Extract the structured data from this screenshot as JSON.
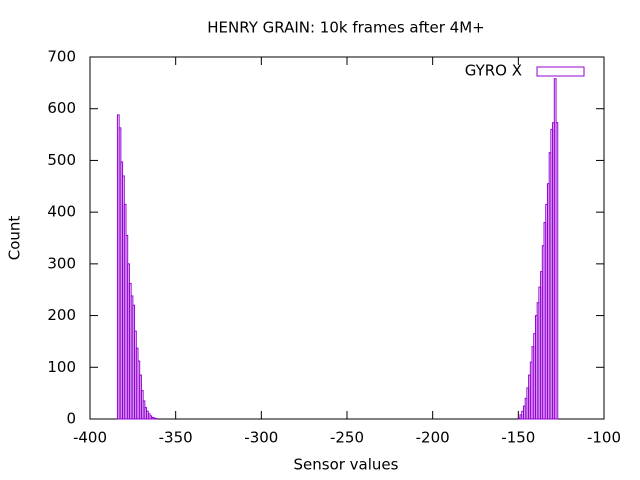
{
  "chart_data": {
    "type": "histogram",
    "title": "HENRY GRAIN: 10k frames after 4M+",
    "xlabel": "Sensor values",
    "ylabel": "Count",
    "series": [
      {
        "name": "GYRO X",
        "color": "#9400d3",
        "bins": [
          -384,
          -383,
          -382,
          -381,
          -380,
          -379,
          -378,
          -377,
          -376,
          -375,
          -374,
          -373,
          -372,
          -371,
          -370,
          -369,
          -368,
          -367,
          -366,
          -365,
          -364,
          -363,
          -362,
          -361,
          -360,
          -359,
          -358,
          -357,
          -356,
          -355,
          -354,
          -353,
          -352,
          -351,
          -350,
          -349,
          -348,
          -347,
          -346,
          -345,
          -344,
          -343,
          -342,
          -341,
          -340,
          -339,
          -338,
          -337,
          -336,
          -335,
          -334,
          -333,
          -332,
          -331,
          -330,
          -329,
          -328,
          -327,
          -326,
          -325,
          -324,
          -323,
          -322,
          -321,
          -320,
          -319,
          -318,
          -317,
          -316,
          -315,
          -314,
          -313,
          -312,
          -311,
          -310,
          -309,
          -308,
          -307,
          -306,
          -305,
          -304,
          -303,
          -302,
          -301,
          -300,
          -299,
          -298,
          -297,
          -296,
          -295,
          -294,
          -293,
          -292,
          -291,
          -290,
          -289,
          -288,
          -287,
          -286,
          -285,
          -284,
          -283,
          -282,
          -281,
          -280,
          -279,
          -278,
          -277,
          -276,
          -275,
          -274,
          -273,
          -272,
          -271,
          -270,
          -269,
          -268,
          -267,
          -266,
          -265,
          -264,
          -263,
          -262,
          -261,
          -260,
          -259,
          -258,
          -257,
          -256,
          -255,
          -254,
          -253,
          -252,
          -251,
          -250,
          -249,
          -248,
          -247,
          -246,
          -245,
          -244,
          -243,
          -242,
          -241,
          -240,
          -239,
          -238,
          -237,
          -236,
          -235,
          -234,
          -233,
          -232,
          -231,
          -230,
          -229,
          -228,
          -227,
          -226,
          -225,
          -224,
          -223,
          -222,
          -221,
          -220,
          -219,
          -218,
          -217,
          -216,
          -215,
          -214,
          -213,
          -212,
          -211,
          -210,
          -209,
          -208,
          -207,
          -206,
          -205,
          -204,
          -203,
          -202,
          -201,
          -200,
          -199,
          -198,
          -197,
          -196,
          -195,
          -194,
          -193,
          -192,
          -191,
          -190,
          -189,
          -188,
          -187,
          -186,
          -185,
          -184,
          -183,
          -182,
          -181,
          -180,
          -179,
          -178,
          -177,
          -176,
          -175,
          -174,
          -173,
          -172,
          -171,
          -170,
          -169,
          -168,
          -167,
          -166,
          -165,
          -164,
          -163,
          -162,
          -161,
          -160,
          -159,
          -158,
          -157,
          -156,
          -155,
          -154,
          -153,
          -152,
          -151,
          -150,
          -149,
          -148,
          -147,
          -146,
          -145,
          -144,
          -143,
          -142,
          -141,
          -140,
          -139,
          -138,
          -137,
          -136,
          -135,
          -134,
          -133,
          -132,
          -131,
          -130,
          -129,
          -128,
          -127
        ],
        "values": [
          588,
          563,
          497,
          470,
          415,
          355,
          300,
          262,
          238,
          220,
          170,
          137,
          112,
          85,
          55,
          35,
          22,
          15,
          10,
          6,
          3,
          2,
          1,
          0,
          0,
          0,
          0,
          0,
          0,
          0,
          0,
          0,
          0,
          0,
          0,
          0,
          0,
          0,
          0,
          0,
          0,
          0,
          0,
          0,
          0,
          0,
          0,
          0,
          0,
          0,
          0,
          0,
          0,
          0,
          0,
          0,
          0,
          0,
          0,
          0,
          0,
          0,
          0,
          0,
          0,
          0,
          0,
          0,
          0,
          0,
          0,
          0,
          0,
          0,
          0,
          0,
          0,
          0,
          0,
          0,
          0,
          0,
          0,
          0,
          0,
          0,
          0,
          0,
          0,
          0,
          0,
          0,
          0,
          0,
          0,
          0,
          0,
          0,
          0,
          0,
          0,
          0,
          0,
          0,
          0,
          0,
          0,
          0,
          0,
          0,
          0,
          0,
          0,
          0,
          0,
          0,
          0,
          0,
          0,
          0,
          0,
          0,
          0,
          0,
          0,
          0,
          0,
          0,
          0,
          0,
          0,
          0,
          0,
          0,
          0,
          0,
          0,
          0,
          0,
          0,
          0,
          0,
          0,
          0,
          0,
          0,
          0,
          0,
          0,
          0,
          0,
          0,
          0,
          0,
          0,
          0,
          0,
          0,
          0,
          0,
          0,
          0,
          0,
          0,
          0,
          0,
          0,
          0,
          0,
          0,
          0,
          0,
          0,
          0,
          0,
          0,
          0,
          0,
          0,
          0,
          0,
          0,
          0,
          0,
          0,
          0,
          0,
          0,
          0,
          0,
          0,
          0,
          0,
          0,
          0,
          0,
          0,
          0,
          0,
          0,
          0,
          0,
          0,
          0,
          0,
          0,
          0,
          0,
          0,
          0,
          0,
          0,
          0,
          0,
          0,
          0,
          0,
          0,
          0,
          0,
          0,
          0,
          0,
          0,
          0,
          0,
          0,
          0,
          0,
          0,
          0,
          0,
          0,
          0,
          2,
          8,
          15,
          25,
          40,
          60,
          85,
          110,
          140,
          165,
          200,
          225,
          255,
          285,
          335,
          380,
          415,
          455,
          515,
          560,
          573,
          658,
          573
        ]
      }
    ],
    "xlim": [
      -400,
      -100
    ],
    "xticks": [
      -400,
      -350,
      -300,
      -250,
      -200,
      -150,
      -100
    ],
    "ylim": [
      0,
      700
    ],
    "yticks": [
      0,
      100,
      200,
      300,
      400,
      500,
      600,
      700
    ],
    "grid": false,
    "legend": "top-right"
  }
}
